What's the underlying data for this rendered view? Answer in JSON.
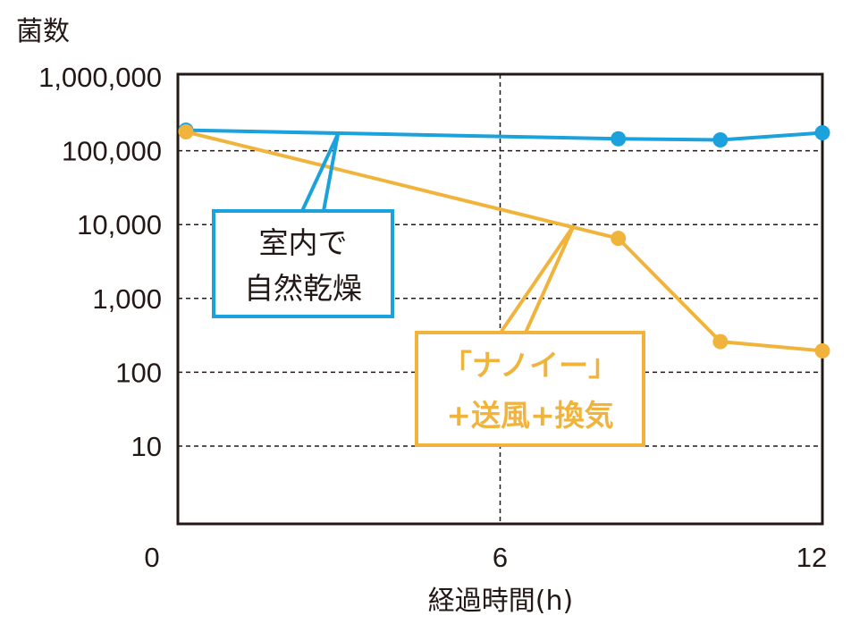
{
  "chart_data": {
    "type": "line",
    "ylabel": "菌数",
    "xlabel": "経過時間(h)",
    "y_scale": "log",
    "grid": "dashed",
    "x_ticks": [
      "0",
      "6",
      "12"
    ],
    "y_ticks": [
      "10",
      "100",
      "1,000",
      "10,000",
      "100,000",
      "1,000,000"
    ],
    "xlim": [
      0,
      12
    ],
    "series": [
      {
        "name": "室内で自然乾燥",
        "label_lines": [
          "室内で",
          "自然乾燥"
        ],
        "color": "#1ba1dc",
        "x": [
          0.15,
          8.2,
          10.1,
          12
        ],
        "y": [
          190000,
          145000,
          140000,
          175000
        ]
      },
      {
        "name": "「ナノイー」+送風+換気",
        "label_lines": [
          "「ナノイー」",
          "+送風+換気"
        ],
        "color": "#f0b43c",
        "x": [
          0.15,
          8.2,
          10.1,
          12
        ],
        "y": [
          180000,
          6500,
          260,
          195
        ]
      }
    ]
  }
}
